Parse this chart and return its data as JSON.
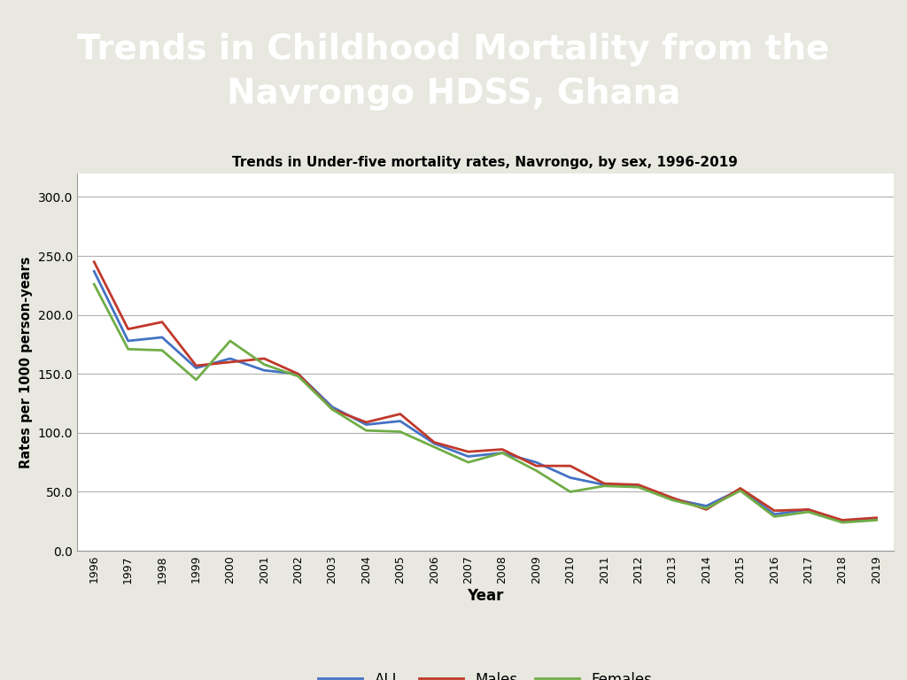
{
  "title_main": "Trends in Childhood Mortality from the\nNavrongo HDSS, Ghana",
  "title_main_bg": "#0d1464",
  "title_main_color": "#ffffff",
  "chart_title": "Trends in Under-five mortality rates, Navrongo, by sex, 1996-2019",
  "xlabel": "Year",
  "ylabel": "Rates per 1000 person-years",
  "years": [
    1996,
    1997,
    1998,
    1999,
    2000,
    2001,
    2002,
    2003,
    2004,
    2005,
    2006,
    2007,
    2008,
    2009,
    2010,
    2011,
    2012,
    2013,
    2014,
    2015,
    2016,
    2017,
    2018,
    2019
  ],
  "all": [
    237,
    178,
    181,
    155,
    163,
    153,
    150,
    122,
    107,
    110,
    91,
    80,
    83,
    75,
    62,
    56,
    55,
    44,
    38,
    52,
    31,
    35,
    25,
    27
  ],
  "males": [
    245,
    188,
    194,
    157,
    160,
    163,
    150,
    120,
    109,
    116,
    92,
    84,
    86,
    72,
    72,
    57,
    56,
    45,
    35,
    53,
    34,
    35,
    26,
    28
  ],
  "females": [
    226,
    171,
    170,
    145,
    178,
    158,
    148,
    120,
    102,
    101,
    88,
    75,
    83,
    68,
    50,
    55,
    54,
    43,
    36,
    51,
    29,
    33,
    24,
    26
  ],
  "color_all": "#4472c4",
  "color_males": "#c0392b",
  "color_females": "#70ad47",
  "ylim": [
    0,
    320
  ],
  "yticks": [
    0.0,
    50.0,
    100.0,
    150.0,
    200.0,
    250.0,
    300.0
  ],
  "border_color": "#b8960c",
  "outer_bg": "#e8e8e0",
  "chart_bg": "#ffffff"
}
